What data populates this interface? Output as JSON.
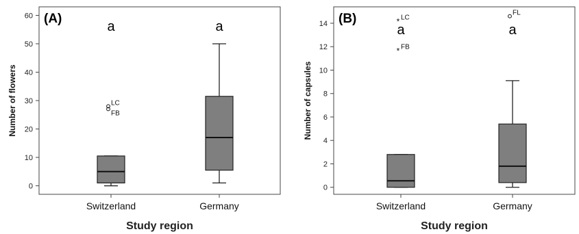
{
  "colors": {
    "box_fill": "#7f7f7f",
    "frame": "#444444",
    "whisker": "#222222"
  },
  "chart_data": [
    {
      "type": "box",
      "panel_label": "(A)",
      "ylabel": "Number of flowers",
      "xlabel": "Study region",
      "ylim": [
        -3,
        63
      ],
      "yticks": [
        "0",
        "10",
        "20",
        "30",
        "40",
        "50",
        "60"
      ],
      "categories": [
        "Switzerland",
        "Germany"
      ],
      "boxes": [
        {
          "category": "Switzerland",
          "whisker_low": 0,
          "q1": 1,
          "median": 5,
          "q3": 10.5,
          "whisker_high": 10.5,
          "outliers": [
            {
              "value": 28,
              "marker": "circle",
              "label": "LC"
            },
            {
              "value": 27,
              "marker": "circle",
              "label": "FB"
            }
          ],
          "letter": "a"
        },
        {
          "category": "Germany",
          "whisker_low": 1,
          "q1": 5.5,
          "median": 17,
          "q3": 31.5,
          "whisker_high": 50,
          "outliers": [],
          "letter": "a"
        }
      ]
    },
    {
      "type": "box",
      "panel_label": "(B)",
      "ylabel": "Number of capsules",
      "xlabel": "Study region",
      "ylim": [
        -0.6,
        15.4
      ],
      "yticks": [
        "0",
        "2",
        "4",
        "6",
        "8",
        "10",
        "12",
        "14"
      ],
      "categories": [
        "Switzerland",
        "Germany"
      ],
      "boxes": [
        {
          "category": "Switzerland",
          "whisker_low": 0,
          "q1": 0,
          "median": 0.55,
          "q3": 2.8,
          "whisker_high": 2.8,
          "outliers": [
            {
              "value": 14.2,
              "marker": "star",
              "label": "LC"
            },
            {
              "value": 11.7,
              "marker": "star",
              "label": "FB"
            }
          ],
          "letter": "a"
        },
        {
          "category": "Germany",
          "whisker_low": 0,
          "q1": 0.4,
          "median": 1.8,
          "q3": 5.4,
          "whisker_high": 9.1,
          "outliers": [
            {
              "value": 14.6,
              "marker": "circle",
              "label": "FL"
            }
          ],
          "letter": "a"
        }
      ]
    }
  ]
}
